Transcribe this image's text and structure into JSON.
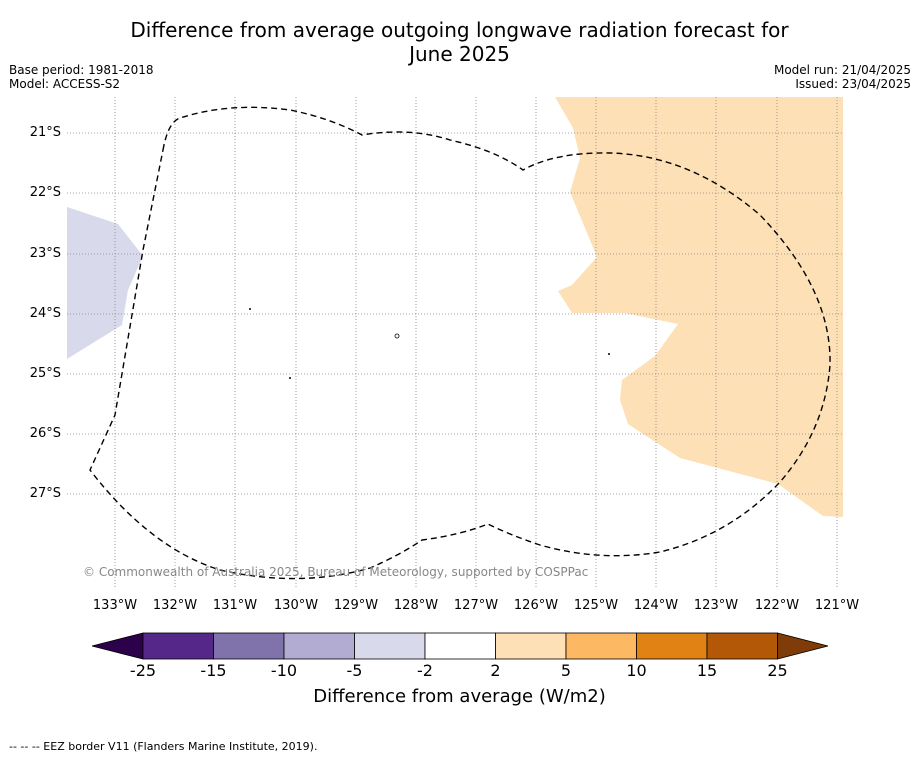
{
  "title_line1": "Difference from average outgoing longwave radiation forecast for",
  "title_line2": "June 2025",
  "meta_left": {
    "base_period": "Base period: 1981-2018",
    "model": "Model: ACCESS-S2"
  },
  "meta_right": {
    "model_run": "Model run: 21/04/2025",
    "issued": "Issued: 23/04/2025"
  },
  "lat_labels": [
    "21°S",
    "22°S",
    "23°S",
    "24°S",
    "25°S",
    "26°S",
    "27°S"
  ],
  "lon_labels": [
    "133°W",
    "132°W",
    "131°W",
    "130°W",
    "129°W",
    "128°W",
    "127°W",
    "126°W",
    "125°W",
    "124°W",
    "123°W",
    "122°W",
    "121°W"
  ],
  "copyright": "© Commonwealth of Australia 2025, Bureau of Meteorology, supported by COSPPac",
  "colorbar": {
    "label": "Difference from average (W/m2)",
    "ticks": [
      "-25",
      "-15",
      "-10",
      "-5",
      "-2",
      "2",
      "5",
      "10",
      "15",
      "25"
    ],
    "colors": {
      "below_min": "#2d004b",
      "c1": "#542788",
      "c2": "#8073ac",
      "c3": "#b2abd2",
      "c4": "#d8daeb",
      "c5": "#ffffff",
      "c6": "#fee0b6",
      "c7": "#fdb863",
      "c8": "#e08214",
      "c9": "#b35806",
      "above_max": "#7f3b08"
    }
  },
  "footer": "--  --  -- EEZ border V11 (Flanders Marine Institute, 2019)."
}
